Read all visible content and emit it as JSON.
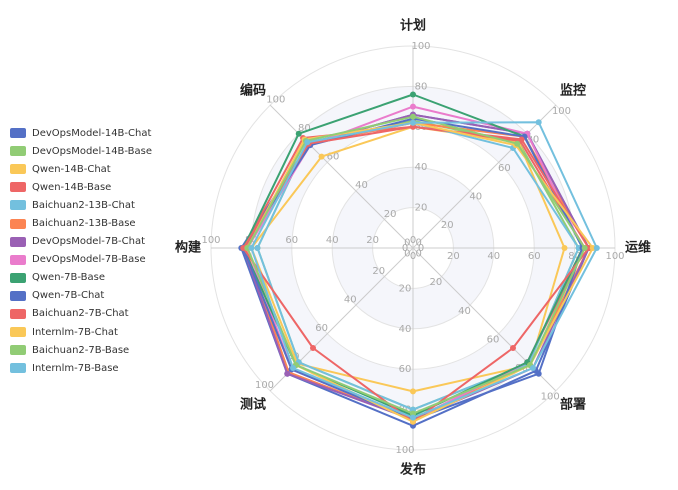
{
  "chart_data": {
    "type": "radar",
    "indicators": [
      "计划",
      "监控",
      "运维",
      "部署",
      "发布",
      "测试",
      "构建",
      "编码"
    ],
    "max": 100,
    "ticks": [
      0,
      20,
      40,
      60,
      80,
      100
    ],
    "legend_position": "left",
    "series": [
      {
        "name": "DevOpsModel-14B-Chat",
        "color": "#5470c6",
        "values": [
          66,
          80,
          87,
          86,
          88,
          88,
          85,
          73
        ]
      },
      {
        "name": "DevOpsModel-14B-Base",
        "color": "#91cc75",
        "values": [
          63,
          74,
          82,
          81,
          80,
          80,
          77,
          74
        ]
      },
      {
        "name": "Qwen-14B-Chat",
        "color": "#fac858",
        "values": [
          60,
          74,
          75,
          82,
          71,
          81,
          80,
          64
        ]
      },
      {
        "name": "Qwen-14B-Base",
        "color": "#ee6666",
        "values": [
          60,
          75,
          85,
          80,
          85,
          85,
          84,
          77
        ]
      },
      {
        "name": "Baichuan2-13B-Chat",
        "color": "#73c0de",
        "values": [
          62,
          70,
          82,
          81,
          80,
          80,
          77,
          74
        ]
      },
      {
        "name": "Baichuan2-13B-Base",
        "color": "#fc8452",
        "values": [
          62,
          78,
          87,
          82,
          85,
          87,
          83,
          73
        ]
      },
      {
        "name": "DevOpsModel-7B-Chat",
        "color": "#9a60b4",
        "values": [
          66,
          80,
          87,
          84,
          85,
          88,
          84,
          73
        ]
      },
      {
        "name": "DevOpsModel-7B-Base",
        "color": "#ea7ccc",
        "values": [
          70,
          80,
          84,
          80,
          85,
          85,
          82,
          72
        ]
      },
      {
        "name": "Qwen-7B-Base",
        "color": "#3ba272",
        "values": [
          76,
          78,
          84,
          80,
          83,
          82,
          84,
          80
        ]
      },
      {
        "name": "Qwen-7B-Chat",
        "color": "#5470c6",
        "values": [
          64,
          78,
          84,
          88,
          85,
          85,
          84,
          72
        ]
      },
      {
        "name": "Baichuan2-7B-Chat",
        "color": "#ee6666",
        "values": [
          60,
          76,
          87,
          70,
          86,
          70,
          84,
          73
        ]
      },
      {
        "name": "Internlm-7B-Chat",
        "color": "#fac858",
        "values": [
          62,
          72,
          89,
          82,
          86,
          82,
          82,
          76
        ]
      },
      {
        "name": "Baichuan2-7B-Base",
        "color": "#91cc75",
        "values": [
          65,
          73,
          85,
          82,
          82,
          82,
          82,
          75
        ]
      },
      {
        "name": "Internlm-7B-Base",
        "color": "#73c0de",
        "values": [
          62,
          88,
          91,
          84,
          84,
          84,
          80,
          74
        ]
      }
    ]
  }
}
